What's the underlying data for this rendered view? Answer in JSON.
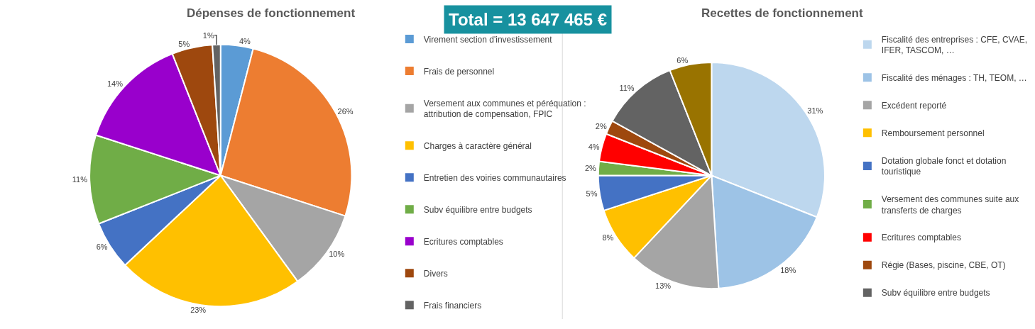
{
  "chart_data": [
    {
      "type": "pie",
      "title": "Dépenses de fonctionnement",
      "legend": "right",
      "annotations": [
        "Total = 13 647 465 €"
      ],
      "categories": [
        "Virement section d'investissement",
        "Frais de personnel",
        "Versement aux communes et péréquation : attribution de compensation, FPIC",
        "Charges à caractère général",
        "Entretien des voiries communautaires",
        "Subv équilibre entre budgets",
        "Ecritures comptables",
        "Divers",
        "Frais financiers"
      ],
      "values": [
        4,
        26,
        10,
        23,
        6,
        11,
        14,
        5,
        1
      ],
      "value_labels": [
        "4%",
        "26%",
        "10%",
        "23%",
        "6%",
        "11%",
        "14%",
        "5%",
        "1%"
      ],
      "colors": [
        "#5b9bd5",
        "#ed7d31",
        "#a5a5a5",
        "#ffc000",
        "#4472c4",
        "#70ad47",
        "#9900cc",
        "#9e480e",
        "#636363"
      ]
    },
    {
      "type": "pie",
      "title": "Recettes de fonctionnement",
      "legend": "right",
      "categories": [
        "Fiscalité des entreprises : CFE, CVAE, IFER, TASCOM, …",
        "Fiscalité des ménages : TH, TEOM, …",
        "Excédent reporté",
        "Remboursement personnel",
        "Dotation globale fonct et dotation touristique",
        "Versement des communes suite aux transferts de charges",
        "Ecritures comptables",
        "Régie (Bases, piscine, CBE, OT)",
        "Subv équilibre entre budgets",
        null
      ],
      "values": [
        31,
        18,
        13,
        8,
        5,
        2,
        4,
        2,
        11,
        6
      ],
      "value_labels": [
        "31%",
        "18%",
        "13%",
        "8%",
        "5%",
        "2%",
        "4%",
        "2%",
        "11%",
        "6%"
      ],
      "colors": [
        "#bdd7ee",
        "#9dc3e6",
        "#a5a5a5",
        "#ffc000",
        "#4472c4",
        "#70ad47",
        "#ff0000",
        "#9e480e",
        "#636363",
        "#997300"
      ]
    }
  ]
}
